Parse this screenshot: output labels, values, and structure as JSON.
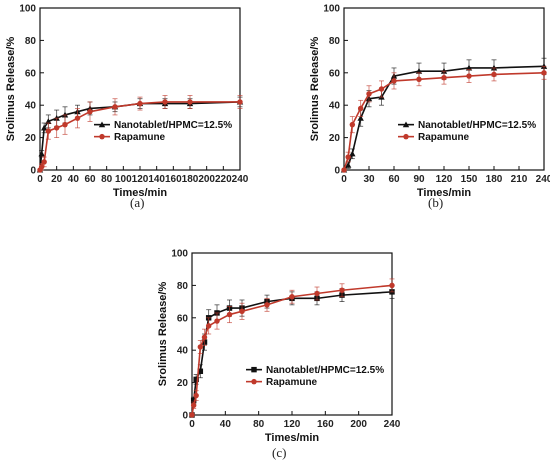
{
  "chart_data": [
    {
      "type": "line",
      "panel_label": "(a)",
      "xlabel": "Times/min",
      "ylabel": "Srolimus Release/%",
      "xlim": [
        0,
        240
      ],
      "ylim": [
        0,
        100
      ],
      "xticks": [
        0,
        20,
        40,
        60,
        80,
        100,
        120,
        140,
        160,
        180,
        200,
        220,
        240
      ],
      "yticks": [
        0,
        20,
        40,
        60,
        80,
        100
      ],
      "grid": false,
      "legend_position": "center-right",
      "series": [
        {
          "name": "Nanotablet/HPMC=12.5%",
          "color": "#111111",
          "marker": "triangle",
          "x": [
            0,
            2,
            5,
            10,
            20,
            30,
            45,
            60,
            90,
            120,
            150,
            180,
            240
          ],
          "y": [
            0,
            10,
            26,
            30,
            32,
            34,
            36,
            38,
            39,
            41,
            41,
            41,
            42
          ],
          "err": [
            0,
            2,
            3,
            4,
            5,
            5,
            4,
            4,
            3,
            3,
            3,
            3,
            3
          ]
        },
        {
          "name": "Rapamune",
          "color": "#c0392b",
          "marker": "circle",
          "x": [
            0,
            2,
            5,
            10,
            20,
            30,
            45,
            60,
            90,
            120,
            150,
            180,
            240
          ],
          "y": [
            0,
            2,
            5,
            24,
            26,
            28,
            32,
            36,
            39,
            41,
            42,
            42,
            42
          ],
          "err": [
            0,
            2,
            3,
            5,
            6,
            6,
            6,
            6,
            5,
            4,
            4,
            4,
            4
          ]
        }
      ]
    },
    {
      "type": "line",
      "panel_label": "(b)",
      "xlabel": "Times/min",
      "ylabel": "Srolimus Release/%",
      "xlim": [
        0,
        240
      ],
      "ylim": [
        0,
        100
      ],
      "xticks": [
        0,
        30,
        60,
        90,
        120,
        150,
        180,
        210,
        240
      ],
      "yticks": [
        0,
        20,
        40,
        60,
        80,
        100
      ],
      "grid": false,
      "legend_position": "center-right",
      "series": [
        {
          "name": "Nanotablet/HPMC=12.5%",
          "color": "#111111",
          "marker": "triangle",
          "x": [
            0,
            5,
            10,
            20,
            30,
            45,
            60,
            90,
            120,
            150,
            180,
            240
          ],
          "y": [
            0,
            3,
            10,
            32,
            44,
            45,
            58,
            61,
            61,
            63,
            63,
            64
          ],
          "err": [
            0,
            2,
            3,
            5,
            5,
            5,
            5,
            5,
            5,
            5,
            5,
            5
          ]
        },
        {
          "name": "Rapamune",
          "color": "#c0392b",
          "marker": "circle",
          "x": [
            0,
            5,
            10,
            20,
            30,
            45,
            60,
            90,
            120,
            150,
            180,
            240
          ],
          "y": [
            0,
            8,
            28,
            38,
            47,
            50,
            55,
            56,
            57,
            58,
            59,
            60
          ],
          "err": [
            0,
            3,
            5,
            5,
            5,
            5,
            5,
            4,
            4,
            4,
            4,
            4
          ]
        }
      ]
    },
    {
      "type": "line",
      "panel_label": "(c)",
      "xlabel": "Times/min",
      "ylabel": "Srolimus Release/%",
      "xlim": [
        0,
        240
      ],
      "ylim": [
        0,
        100
      ],
      "xticks": [
        0,
        40,
        80,
        120,
        160,
        200,
        240
      ],
      "yticks": [
        0,
        20,
        40,
        60,
        80,
        100
      ],
      "grid": false,
      "legend_position": "center-right",
      "series": [
        {
          "name": "Nanotablet/HPMC=12.5%",
          "color": "#111111",
          "marker": "square",
          "x": [
            0,
            2,
            5,
            10,
            15,
            20,
            30,
            45,
            60,
            90,
            120,
            150,
            180,
            240
          ],
          "y": [
            0,
            9,
            22,
            27,
            45,
            60,
            63,
            66,
            66,
            70,
            72,
            72,
            74,
            76
          ],
          "err": [
            0,
            2,
            3,
            4,
            5,
            5,
            5,
            5,
            5,
            4,
            4,
            4,
            4,
            4
          ]
        },
        {
          "name": "Rapamune",
          "color": "#c0392b",
          "marker": "circle",
          "x": [
            0,
            2,
            5,
            10,
            15,
            20,
            30,
            45,
            60,
            90,
            120,
            150,
            180,
            240
          ],
          "y": [
            0,
            6,
            12,
            42,
            48,
            55,
            58,
            62,
            64,
            68,
            73,
            75,
            77,
            80
          ],
          "err": [
            0,
            2,
            3,
            4,
            5,
            5,
            5,
            5,
            5,
            4,
            4,
            4,
            4,
            4
          ]
        }
      ]
    }
  ]
}
